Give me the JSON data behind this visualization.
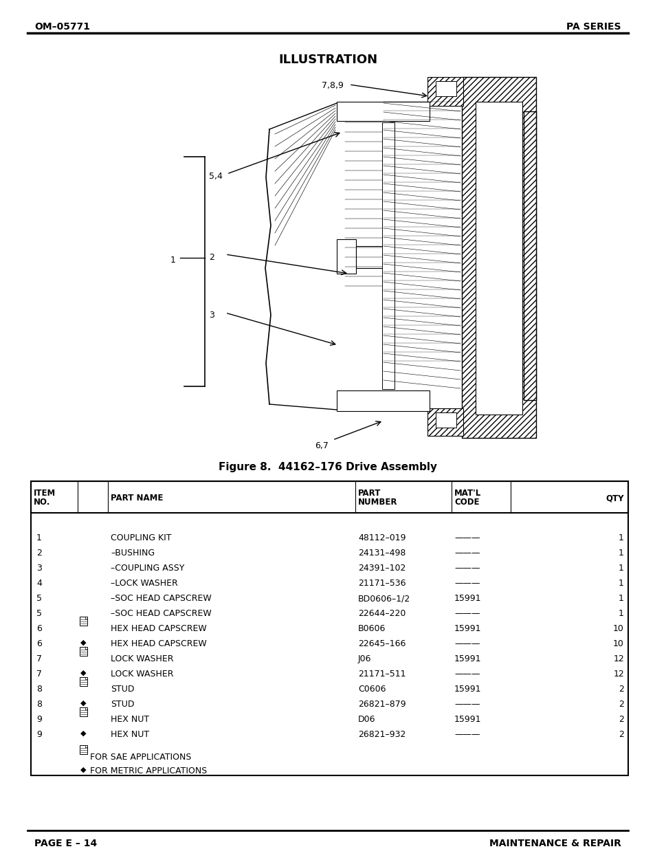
{
  "header_om": "OM–05771",
  "header_pa": "PA SERIES",
  "section_title": "ILLUSTRATION",
  "figure_caption": "Figure 8.  44162–176 Drive Assembly",
  "footer_left": "PAGE E – 14",
  "footer_right": "MAINTENANCE & REPAIR",
  "table_rows": [
    [
      "1",
      "",
      "COUPLING KIT",
      "48112–019",
      "———",
      "1"
    ],
    [
      "2",
      "",
      "–BUSHING",
      "24131–498",
      "———",
      "1"
    ],
    [
      "3",
      "",
      "–COUPLING ASSY",
      "24391–102",
      "———",
      "1"
    ],
    [
      "4",
      "",
      "–LOCK WASHER",
      "21171–536",
      "———",
      "1"
    ],
    [
      "5",
      "",
      "–SOC HEAD CAPSCREW",
      "BD0606–1/2",
      "15991",
      "1"
    ],
    [
      "5",
      "",
      "–SOC HEAD CAPSCREW",
      "22644–220",
      "———",
      "1"
    ],
    [
      "6",
      "sae",
      "HEX HEAD CAPSCREW",
      "B0606",
      "15991",
      "10"
    ],
    [
      "6",
      "met",
      "HEX HEAD CAPSCREW",
      "22645–166",
      "———",
      "10"
    ],
    [
      "7",
      "sae",
      "LOCK WASHER",
      "J06",
      "15991",
      "12"
    ],
    [
      "7",
      "met",
      "LOCK WASHER",
      "21171–511",
      "———",
      "12"
    ],
    [
      "8",
      "sae",
      "STUD",
      "C0606",
      "15991",
      "2"
    ],
    [
      "8",
      "met",
      "STUD",
      "26821–879",
      "———",
      "2"
    ],
    [
      "9",
      "sae",
      "HEX NUT",
      "D06",
      "15991",
      "2"
    ],
    [
      "9",
      "met",
      "HEX NUT",
      "26821–932",
      "———",
      "2"
    ]
  ],
  "footnotes_sae": "FOR SAE APPLICATIONS",
  "footnotes_met": "FOR METRIC APPLICATIONS",
  "bg_color": "#ffffff"
}
